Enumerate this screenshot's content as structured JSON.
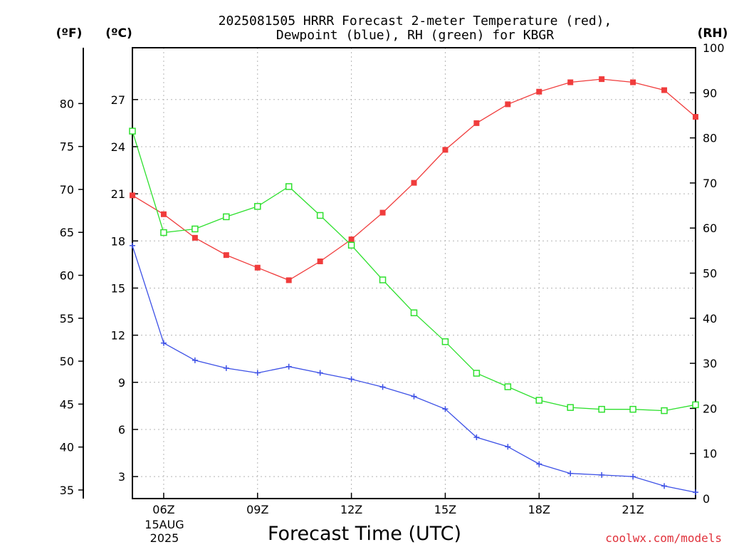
{
  "chart_data": {
    "type": "line",
    "title_line1": "2025081505 HRRR Forecast 2-meter Temperature (red),",
    "title_line2": "Dewpoint (blue), RH (green) for KBGR",
    "xlabel": "Forecast Time (UTC)",
    "credit": "coolwx.com/models",
    "unit_f": "(ºF)",
    "unit_c": "(ºC)",
    "unit_rh": "(RH)",
    "date_label_day": "15AUG",
    "date_label_year": "2025",
    "x_hours": [
      5,
      6,
      7,
      8,
      9,
      10,
      11,
      12,
      13,
      14,
      15,
      16,
      17,
      18,
      19,
      20,
      21,
      22,
      23
    ],
    "x_ticks": [
      {
        "hour": 6,
        "label": "06Z"
      },
      {
        "hour": 9,
        "label": "09Z"
      },
      {
        "hour": 12,
        "label": "12Z"
      },
      {
        "hour": 15,
        "label": "15Z"
      },
      {
        "hour": 18,
        "label": "18Z"
      },
      {
        "hour": 21,
        "label": "21Z"
      }
    ],
    "xlim": [
      5,
      23
    ],
    "ylim_c": [
      1.6,
      30.3
    ],
    "ylim_f": [
      34.0,
      86.5
    ],
    "ylim_rh": [
      0,
      100
    ],
    "yticks_c": [
      3,
      6,
      9,
      12,
      15,
      18,
      21,
      24,
      27
    ],
    "yticks_f": [
      35,
      40,
      45,
      50,
      55,
      60,
      65,
      70,
      75,
      80
    ],
    "yticks_rh": [
      0,
      10,
      20,
      30,
      40,
      50,
      60,
      70,
      80,
      90,
      100
    ],
    "series": [
      {
        "name": "Temperature",
        "unit": "C",
        "color": "#f03c3c",
        "marker": "filled-square",
        "values": [
          20.9,
          19.7,
          18.2,
          17.1,
          16.3,
          15.5,
          16.7,
          18.1,
          19.8,
          21.7,
          23.8,
          25.5,
          26.7,
          27.5,
          28.1,
          28.3,
          28.1,
          27.6,
          25.9
        ]
      },
      {
        "name": "Dewpoint",
        "unit": "C",
        "color": "#3c50e6",
        "marker": "plus",
        "values": [
          17.7,
          11.5,
          10.4,
          9.9,
          9.6,
          10.0,
          9.6,
          9.2,
          8.7,
          8.1,
          7.3,
          5.5,
          4.9,
          3.8,
          3.2,
          3.1,
          3.0,
          2.4,
          2.0
        ]
      },
      {
        "name": "RH",
        "unit": "%",
        "color": "#2ee02e",
        "marker": "open-square",
        "values": [
          81.5,
          59.0,
          59.8,
          62.5,
          64.8,
          69.2,
          62.8,
          56.2,
          48.5,
          41.2,
          34.8,
          27.8,
          24.8,
          21.8,
          20.2,
          19.8,
          19.8,
          19.5,
          20.8
        ]
      }
    ],
    "grid": true
  }
}
